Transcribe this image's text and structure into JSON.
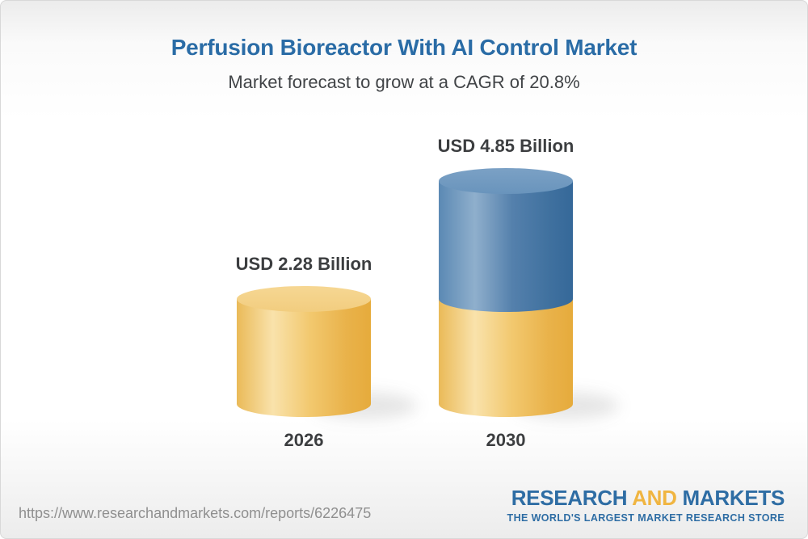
{
  "header": {
    "title": "Perfusion Bioreactor With AI Control Market",
    "subtitle": "Market forecast to grow at a CAGR of 20.8%"
  },
  "chart_data": {
    "type": "bar",
    "style": "3d-cylinder-stacked",
    "title": "Perfusion Bioreactor With AI Control Market",
    "subtitle": "Market forecast to grow at a CAGR of 20.8%",
    "cagr_percent": 20.8,
    "unit": "USD Billion",
    "categories": [
      "2026",
      "2030"
    ],
    "values": [
      2.28,
      4.85
    ],
    "value_labels": [
      "USD 2.28 Billion",
      "USD 4.85 Billion"
    ],
    "series_note": "2030 bar shows 2026 base in gold with growth segment stacked on top in blue",
    "xlabel": "",
    "ylabel": "",
    "axes": "none",
    "grid": false,
    "legend_position": "none",
    "colors": {
      "base_segment": "#f0c366",
      "growth_segment": "#4a7aa9",
      "label_text": "#3c3e40"
    }
  },
  "footer": {
    "url": "https://www.researchandmarkets.com/reports/6226475",
    "logo": {
      "part1": "RESEARCH",
      "part2": "AND",
      "part3": "MARKETS",
      "tagline": "THE WORLD'S LARGEST MARKET RESEARCH STORE"
    }
  },
  "colors": {
    "title_blue": "#2a6ca6",
    "text_dark": "#3c3e40",
    "url_gray": "#8f8f8f",
    "logo_blue": "#2e6da4",
    "logo_gold": "#f0b541"
  }
}
